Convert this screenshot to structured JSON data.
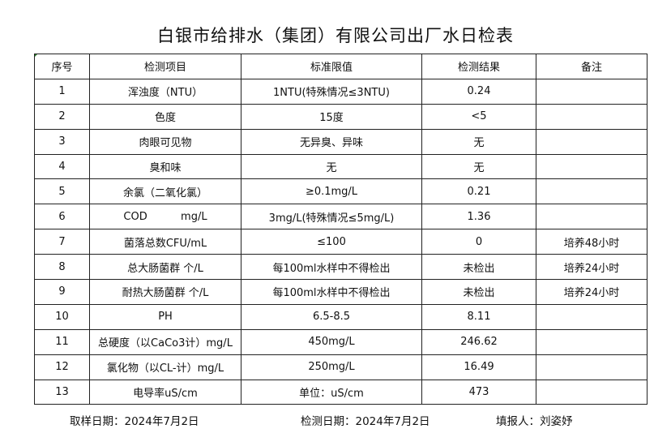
{
  "title": "白银市给排水（集团）有限公司出厂水日检表",
  "headers": [
    "序号",
    "检测项目",
    "标准限值",
    "检测结果",
    "备注"
  ],
  "rows": [
    [
      "1",
      "浑浊度（NTU）",
      "1NTU(特殊情况≤3NTU)",
      "0.24",
      ""
    ],
    [
      "2",
      "色度",
      "15度",
      "<5",
      ""
    ],
    [
      "3",
      "肉眼可见物",
      "无异臭、异味",
      "无",
      ""
    ],
    [
      "4",
      "臭和味",
      "无",
      "无",
      ""
    ],
    [
      "5",
      "余氯（二氧化氯）",
      "≥0.1mg/L",
      "0.21",
      ""
    ],
    [
      "6",
      "COD          mg/L",
      "3mg/L(特殊情况≤5mg/L)",
      "1.36",
      ""
    ],
    [
      "7",
      "菌落总数CFU/mL",
      "≤100",
      "0",
      "培养48小时"
    ],
    [
      "8",
      "总大肠菌群 个/L",
      "每100ml水样中不得检出",
      "未检出",
      "培养24小时"
    ],
    [
      "9",
      "耐热大肠菌群 个/L",
      "每100ml水样中不得检出",
      "未检出",
      "培养24小时"
    ],
    [
      "10",
      "PH",
      "6.5-8.5",
      "8.11",
      ""
    ],
    [
      "11",
      "总硬度（以CaCo3计）mg/L",
      "450mg/L",
      "246.62",
      ""
    ],
    [
      "12",
      "氯化物（以CL-计）mg/L",
      "250mg/L",
      "16.49",
      ""
    ],
    [
      "13",
      "电导率uS/cm",
      "单位：uS/cm",
      "473",
      ""
    ]
  ],
  "footer": {
    "sampling_date": "取样日期：2024年7月2日",
    "test_date": "检测日期：2024年7月2日",
    "reporter": "填报人：刘姿妤"
  }
}
